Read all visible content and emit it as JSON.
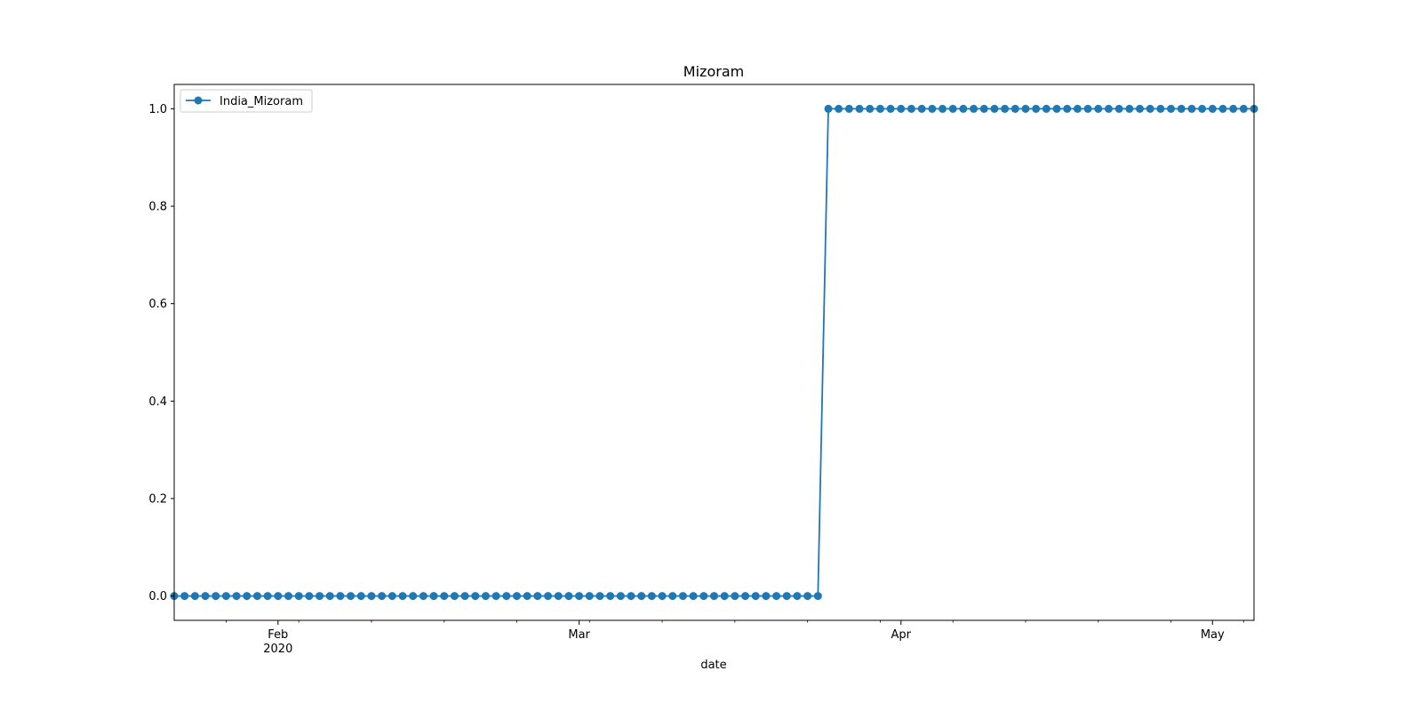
{
  "chart_data": {
    "type": "line",
    "title": "Mizoram",
    "xlabel": "date",
    "ylabel": "",
    "x_start": "2020-01-22",
    "x_end": "2020-05-05",
    "xlim": [
      "2020-01-22",
      "2020-05-05"
    ],
    "ylim": [
      -0.05,
      1.05
    ],
    "yticks": [
      0.0,
      0.2,
      0.4,
      0.6,
      0.8,
      1.0
    ],
    "ytick_labels": [
      "0.0",
      "0.2",
      "0.4",
      "0.6",
      "0.8",
      "1.0"
    ],
    "xticks_major": [
      {
        "date": "2020-02-01",
        "label": "Feb",
        "sublabel": "2020"
      },
      {
        "date": "2020-03-01",
        "label": "Mar",
        "sublabel": ""
      },
      {
        "date": "2020-04-01",
        "label": "Apr",
        "sublabel": ""
      },
      {
        "date": "2020-05-01",
        "label": "May",
        "sublabel": ""
      }
    ],
    "step_date": "2020-03-25",
    "series": [
      {
        "name": "India_Mizoram",
        "color": "#1f77b4",
        "marker": "circle",
        "values_rule": "0 for every day from 2020-01-22 through 2020-03-24, 1 for every day from 2020-03-25 through 2020-05-05"
      }
    ],
    "legend": "upper-left",
    "grid": false
  }
}
